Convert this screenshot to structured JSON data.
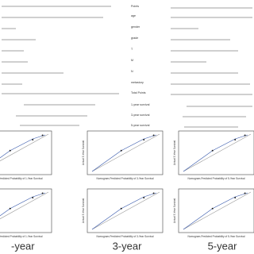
{
  "nomogram": {
    "rows": [
      "Points",
      "age",
      "gender",
      "grade",
      "T",
      "M",
      "N",
      "metastory",
      "Total Points",
      "1-year survival",
      "3-year survival",
      "5-year survival"
    ]
  },
  "panels": [
    {
      "x_label": "Nomogram-Predicted Probability of 1-Year Survival",
      "y_label": "Actual 1-Year Survival"
    },
    {
      "x_label": "Nomogram-Predicted Probability of 3-Year Survival",
      "y_label": "Actual 3-Year Survival"
    },
    {
      "x_label": "Nomogram-Predicted Probability of 5-Year Survival",
      "y_label": "Actual 5-Year Survival"
    },
    {
      "x_label": "Nomogram-Predicted Probability of 1-Year Survival",
      "y_label": "Actual 1-Year Survival"
    },
    {
      "x_label": "Nomogram-Predicted Probability of 3-Year Survival",
      "y_label": "Actual 3-Year Survival"
    },
    {
      "x_label": "Nomogram-Predicted Probability of 5-Year Survival",
      "y_label": "Actual 5-Year Survival"
    }
  ],
  "captions": [
    "-year",
    "3-year",
    "5-year"
  ]
}
